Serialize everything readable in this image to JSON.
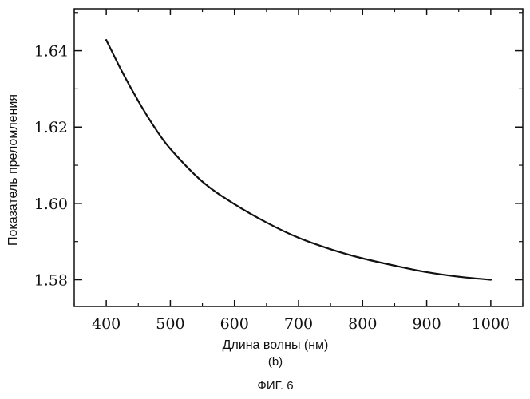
{
  "chart_data": {
    "type": "line",
    "xlabel": "Длина волны (нм)",
    "ylabel": "Показатель преломления",
    "subcaption": "(b)",
    "figure_caption": "ФИГ. 6",
    "xlim": [
      350,
      1050
    ],
    "ylim": [
      1.573,
      1.651
    ],
    "x_ticks": [
      400,
      500,
      600,
      700,
      800,
      900,
      1000
    ],
    "y_ticks": [
      1.58,
      1.6,
      1.62,
      1.64
    ],
    "x_tick_labels": [
      "400",
      "500",
      "600",
      "700",
      "800",
      "900",
      "1000"
    ],
    "y_tick_labels": [
      "1.58",
      "1.60",
      "1.62",
      "1.64"
    ],
    "grid": false,
    "series": [
      {
        "x": [
          400,
          425,
          450,
          475,
          500,
          550,
          600,
          650,
          700,
          750,
          800,
          850,
          900,
          950,
          1000
        ],
        "y": [
          1.6428,
          1.6344,
          1.6268,
          1.62,
          1.6143,
          1.6057,
          1.5998,
          1.595,
          1.591,
          1.588,
          1.5856,
          1.5837,
          1.582,
          1.5808,
          1.58
        ]
      }
    ]
  }
}
